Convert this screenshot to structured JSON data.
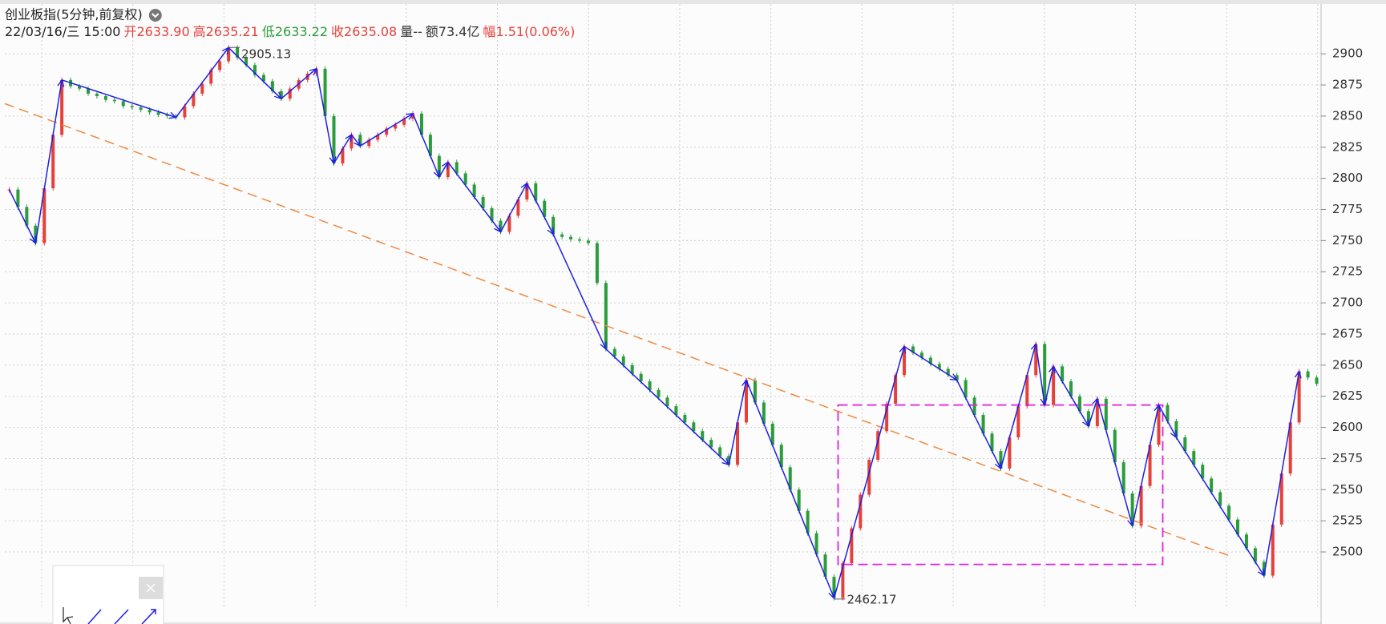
{
  "header": {
    "title": "创业板指(5分钟,前复权)",
    "datetime": "22/03/16/三 15:00",
    "fields": [
      {
        "label": "开",
        "value": "2633.90",
        "color": "#e5413b"
      },
      {
        "label": "高",
        "value": "2635.21",
        "color": "#e5413b"
      },
      {
        "label": "低",
        "value": "2633.22",
        "color": "#2a9d3a"
      },
      {
        "label": "收",
        "value": "2635.08",
        "color": "#e5413b"
      },
      {
        "label": "量",
        "value": "--",
        "color": "#333333"
      },
      {
        "label": "额",
        "value": "73.4亿",
        "color": "#333333"
      },
      {
        "label": "幅",
        "value": "1.51(0.06%)",
        "color": "#e5413b"
      }
    ]
  },
  "chart_data": {
    "type": "candlestick",
    "categories": [
      null,
      null,
      null,
      null,
      null,
      null,
      null,
      null,
      null,
      null,
      null,
      null,
      null,
      null,
      null,
      null,
      null,
      null,
      null,
      null,
      null,
      null,
      null,
      null,
      null,
      null,
      null,
      null,
      null,
      null,
      null,
      null,
      null,
      null,
      null,
      null,
      null,
      null,
      null,
      null,
      null,
      null,
      null,
      null,
      null,
      null,
      null,
      null,
      null,
      null,
      null,
      null,
      null,
      null,
      null,
      null,
      null,
      null,
      null,
      null,
      null,
      null,
      null,
      null,
      null,
      null,
      null,
      null,
      null,
      null,
      null,
      null,
      null,
      null,
      null,
      null,
      null,
      null,
      null,
      null,
      null,
      null,
      null,
      null,
      null,
      null,
      null,
      null,
      null,
      null,
      null,
      null,
      null,
      null,
      null,
      null,
      null,
      null,
      null,
      null,
      null,
      null,
      null,
      null,
      null,
      null,
      null,
      null,
      null,
      null,
      null,
      null,
      null,
      null,
      null,
      null,
      null,
      null,
      null,
      null,
      null,
      null,
      null,
      null,
      null,
      null,
      null,
      null,
      null,
      null,
      null,
      null,
      null,
      null,
      null,
      null,
      null,
      null,
      null,
      null,
      null,
      null,
      null,
      null,
      null,
      null,
      null,
      null,
      null,
      null
    ],
    "values": [
      2791,
      2777,
      2762,
      2748,
      2792,
      2835,
      2879,
      2874,
      2872,
      2868,
      2866,
      2863,
      2862,
      2858,
      2857,
      2855,
      2853,
      2851,
      2850,
      2849,
      2858,
      2868,
      2876,
      2887,
      2894,
      2905,
      2897,
      2891,
      2883,
      2878,
      2870,
      2864,
      2872,
      2879,
      2884,
      2888,
      2850,
      2812,
      2824,
      2835,
      2826,
      2831,
      2835,
      2840,
      2843,
      2848,
      2852,
      2835,
      2818,
      2801,
      2813,
      2804,
      2795,
      2785,
      2776,
      2766,
      2757,
      2770,
      2783,
      2796,
      2782,
      2769,
      2755,
      2753,
      2751,
      2750,
      2748,
      2716,
      2663,
      2657,
      2650,
      2643,
      2637,
      2630,
      2624,
      2617,
      2610,
      2604,
      2597,
      2590,
      2584,
      2577,
      2570,
      2604,
      2638,
      2620,
      2603,
      2586,
      2568,
      2550,
      2533,
      2515,
      2498,
      2480,
      2463,
      2491,
      2519,
      2546,
      2574,
      2597,
      2619,
      2642,
      2665,
      2660,
      2656,
      2651,
      2647,
      2642,
      2638,
      2624,
      2610,
      2595,
      2581,
      2567,
      2592,
      2617,
      2642,
      2667,
      2618,
      2649,
      2637,
      2625,
      2613,
      2601,
      2623,
      2598,
      2572,
      2547,
      2521,
      2553,
      2586,
      2618,
      2605,
      2592,
      2581,
      2570,
      2559,
      2548,
      2537,
      2526,
      2514,
      2503,
      2492,
      2481,
      2522,
      2563,
      2604,
      2645,
      2640,
      2635
    ],
    "up_color": "#e5413b",
    "down_color": "#2a9d3a",
    "zigzag": {
      "color": "#1e1ee6",
      "indices": [
        0,
        3,
        6,
        19,
        25,
        31,
        35,
        37,
        39,
        40,
        46,
        49,
        50,
        56,
        59,
        62,
        68,
        82,
        84,
        94,
        102,
        108,
        113,
        117,
        118,
        119,
        123,
        124,
        128,
        131,
        133,
        143,
        147
      ]
    },
    "trendline": {
      "color": "#f0883e",
      "start": [
        0,
        2860
      ],
      "end": [
        139,
        2497
      ]
    },
    "box": {
      "color": "#e020e0",
      "from": 94,
      "to": 131,
      "top": 2618,
      "bottom": 2490
    },
    "annotations": [
      {
        "label": "2905.13",
        "index": 25,
        "value": 2905.13
      },
      {
        "label": "2462.17",
        "index": 94,
        "value": 2462.17
      }
    ],
    "ylim": [
      2455,
      2940
    ],
    "yticks": [
      2500,
      2525,
      2550,
      2575,
      2600,
      2625,
      2650,
      2675,
      2700,
      2725,
      2750,
      2775,
      2800,
      2825,
      2850,
      2875,
      2900
    ],
    "grid": true
  }
}
